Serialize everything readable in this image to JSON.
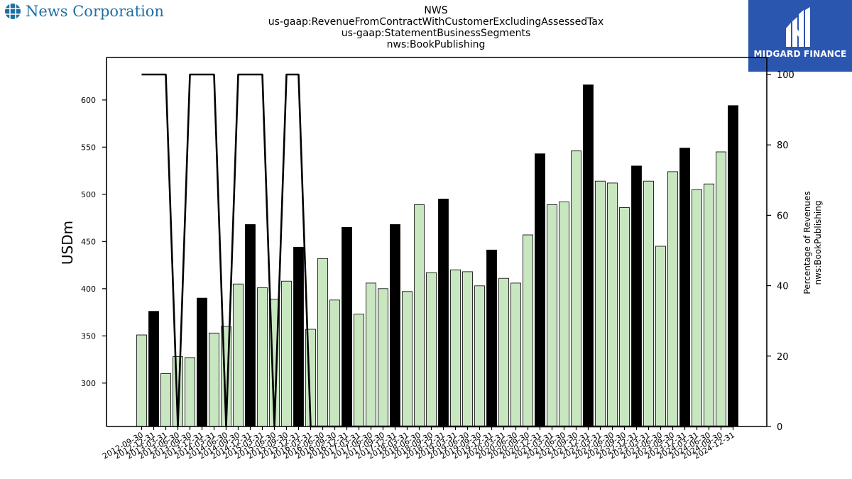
{
  "brand": {
    "name": "News Corporation",
    "icon": "globe-grid-icon"
  },
  "header": {
    "title_lines": [
      "NWS",
      "us-gaap:RevenueFromContractWithCustomerExcludingAssessedTax",
      "us-gaap:StatementBusinessSegments",
      "nws:BookPublishing"
    ]
  },
  "watermark": {
    "text": "MIDGARD FINANCE",
    "color": "#2b56b0"
  },
  "colors": {
    "bar_light": "#c8e6c0",
    "bar_dark": "#000000",
    "line": "#000000"
  },
  "chart_data": {
    "type": "bar",
    "ylabel": "USDm",
    "y2label_lines": [
      "Percentage of Revenues",
      "nws:BookPublishing"
    ],
    "ylim": [
      254,
      645
    ],
    "yticks": [
      300,
      350,
      400,
      450,
      500,
      550,
      600
    ],
    "y2lim": [
      0,
      100
    ],
    "y2ticks": [
      0,
      20,
      40,
      60,
      80,
      100
    ],
    "categories": [
      "2012-09-30",
      "2012-12-31",
      "2013-03-31",
      "2013-06-30",
      "2013-09-30",
      "2013-12-31",
      "2014-03-31",
      "2014-06-30",
      "2014-09-30",
      "2014-12-31",
      "2015-03-31",
      "2015-06-30",
      "2015-09-30",
      "2015-12-31",
      "2016-03-31",
      "2016-06-30",
      "2016-09-30",
      "2016-12-31",
      "2017-03-31",
      "2017-06-30",
      "2017-09-30",
      "2017-12-31",
      "2018-03-31",
      "2018-06-30",
      "2018-09-30",
      "2018-12-31",
      "2019-03-31",
      "2019-06-30",
      "2019-09-30",
      "2019-12-31",
      "2020-03-31",
      "2020-06-30",
      "2020-09-30",
      "2020-12-31",
      "2021-03-31",
      "2021-06-30",
      "2021-09-30",
      "2021-12-31",
      "2022-03-31",
      "2022-06-30",
      "2022-09-30",
      "2022-12-31",
      "2023-03-31",
      "2023-06-30",
      "2023-09-30",
      "2023-12-31",
      "2024-03-31",
      "2024-06-30",
      "2024-09-30",
      "2024-12-31"
    ],
    "series": [
      {
        "values": [
          351,
          376,
          310,
          328,
          327,
          390,
          353,
          360,
          405,
          468,
          401,
          389,
          408,
          444,
          357,
          432,
          388,
          465,
          373,
          406,
          400,
          468,
          397,
          489,
          417,
          495,
          420,
          418,
          403,
          441,
          411,
          406,
          457,
          543,
          489,
          492,
          546,
          616,
          514,
          512,
          486,
          530,
          514,
          445,
          524,
          549,
          505,
          511,
          545,
          594
        ],
        "highlight": [
          false,
          true,
          false,
          false,
          false,
          true,
          false,
          false,
          false,
          true,
          false,
          false,
          false,
          true,
          false,
          false,
          false,
          true,
          false,
          false,
          false,
          true,
          false,
          false,
          false,
          true,
          false,
          false,
          false,
          true,
          false,
          false,
          false,
          true,
          false,
          false,
          false,
          true,
          false,
          false,
          false,
          true,
          false,
          false,
          false,
          true,
          false,
          false,
          false,
          true
        ]
      }
    ],
    "line": {
      "values": [
        100,
        100,
        100,
        0,
        100,
        100,
        100,
        0,
        100,
        100,
        100,
        0,
        100,
        100,
        0,
        0,
        0,
        0,
        0,
        0,
        0,
        0,
        0,
        0,
        0,
        0,
        0,
        0,
        0,
        0,
        0,
        0,
        0,
        0,
        0,
        0,
        0,
        0,
        0,
        0,
        0,
        0,
        0,
        0,
        0,
        0,
        0,
        0,
        0,
        0
      ]
    }
  }
}
